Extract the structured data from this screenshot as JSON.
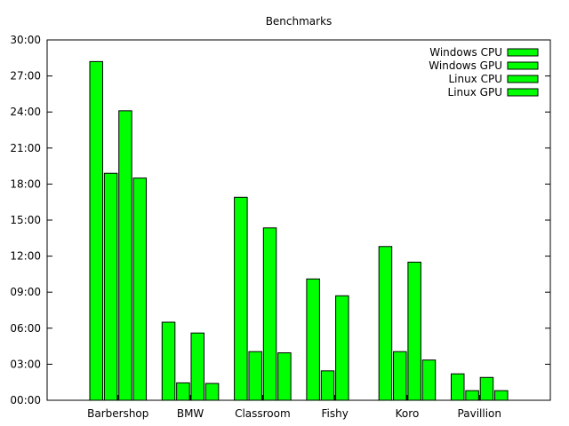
{
  "chart_data": {
    "type": "bar",
    "title": "Benchmarks",
    "xlabel": "",
    "ylabel": "",
    "y_unit": "minutes (mm:ss)",
    "ylim": [
      0,
      30
    ],
    "yticks": [
      {
        "value": 0,
        "label": "00:00"
      },
      {
        "value": 3,
        "label": "03:00"
      },
      {
        "value": 6,
        "label": "06:00"
      },
      {
        "value": 9,
        "label": "09:00"
      },
      {
        "value": 12,
        "label": "12:00"
      },
      {
        "value": 15,
        "label": "15:00"
      },
      {
        "value": 18,
        "label": "18:00"
      },
      {
        "value": 21,
        "label": "21:00"
      },
      {
        "value": 24,
        "label": "24:00"
      },
      {
        "value": 27,
        "label": "27:00"
      },
      {
        "value": 30,
        "label": "30:00"
      }
    ],
    "categories": [
      "Barbershop",
      "BMW",
      "Classroom",
      "Fishy",
      "Koro",
      "Pavillion"
    ],
    "series": [
      {
        "name": "Windows CPU",
        "color": "#00ff00",
        "values": [
          28.2,
          6.5,
          16.9,
          10.1,
          12.8,
          2.2
        ]
      },
      {
        "name": "Windows GPU",
        "color": "#00ff00",
        "values": [
          18.9,
          1.45,
          4.05,
          2.45,
          4.05,
          0.8
        ]
      },
      {
        "name": "Linux CPU",
        "color": "#00ff00",
        "values": [
          24.1,
          5.6,
          14.35,
          8.7,
          11.5,
          1.9
        ]
      },
      {
        "name": "Linux GPU",
        "color": "#00ff00",
        "values": [
          18.5,
          1.4,
          3.95,
          null,
          3.35,
          0.8
        ]
      }
    ],
    "grid": false,
    "legend_position": "top-right"
  }
}
